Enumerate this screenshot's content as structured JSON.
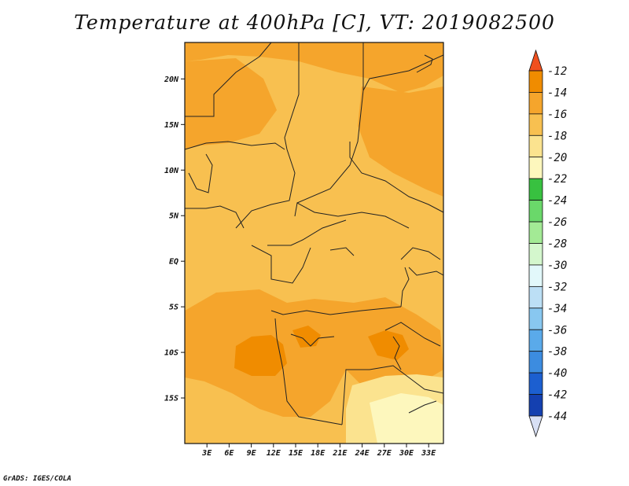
{
  "title": "Temperature at 400hPa [C], VT: 2019082500",
  "credit": "GrADS: IGES/COLA",
  "map": {
    "lon_range": [
      0,
      35
    ],
    "lat_range": [
      -20,
      24
    ],
    "lat_ticks": [
      {
        "value": 20,
        "label": "20N"
      },
      {
        "value": 15,
        "label": "15N"
      },
      {
        "value": 10,
        "label": "10N"
      },
      {
        "value": 5,
        "label": "5N"
      },
      {
        "value": 0,
        "label": "EQ"
      },
      {
        "value": -5,
        "label": "5S"
      },
      {
        "value": -10,
        "label": "10S"
      },
      {
        "value": -15,
        "label": "15S"
      }
    ],
    "lon_ticks": [
      {
        "value": 3,
        "label": "3E"
      },
      {
        "value": 6,
        "label": "6E"
      },
      {
        "value": 9,
        "label": "9E"
      },
      {
        "value": 12,
        "label": "12E"
      },
      {
        "value": 15,
        "label": "15E"
      },
      {
        "value": 18,
        "label": "18E"
      },
      {
        "value": 21,
        "label": "21E"
      },
      {
        "value": 24,
        "label": "24E"
      },
      {
        "value": 27,
        "label": "27E"
      },
      {
        "value": 30,
        "label": "30E"
      },
      {
        "value": 33,
        "label": "33E"
      }
    ],
    "field_range_c": [
      -22,
      -13
    ]
  },
  "colorbar": {
    "levels": [
      -12,
      -14,
      -16,
      -18,
      -20,
      -22,
      -24,
      -26,
      -28,
      -30,
      -32,
      -34,
      -36,
      -38,
      -40,
      -42,
      -44
    ],
    "colors": [
      "#f0501e",
      "#f08c00",
      "#f5a52c",
      "#f8c050",
      "#fbe38f",
      "#fdf7bd",
      "#38c140",
      "#6ad86a",
      "#a3ea95",
      "#d4f7cd",
      "#e2f8fa",
      "#bcdff5",
      "#88c7f0",
      "#5aaaea",
      "#3c8ce0",
      "#1c5fd0",
      "#1440b0",
      "#080c68"
    ],
    "top_color": "#f0501e",
    "bottom_color": "#d8e0f5"
  }
}
